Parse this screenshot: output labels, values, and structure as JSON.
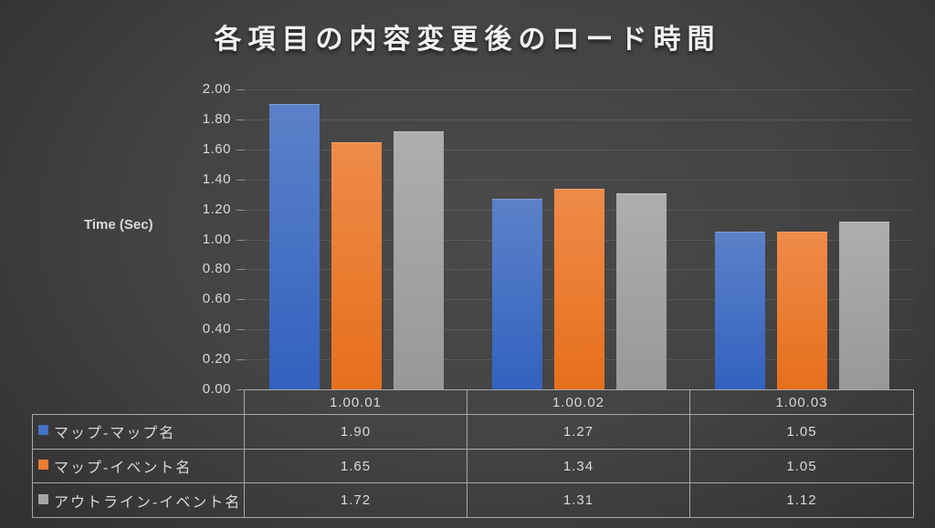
{
  "title": "各項目の内容変更後のロード時間",
  "y_axis": {
    "label": "Time (Sec)",
    "tick_labels": [
      "2.00",
      "1.80",
      "1.60",
      "1.40",
      "1.20",
      "1.00",
      "0.80",
      "0.60",
      "0.40",
      "0.20",
      "0.00"
    ],
    "min": 0,
    "max": 2
  },
  "chart_data": {
    "type": "bar",
    "title": "各項目の内容変更後のロード時間",
    "categories": [
      "1.00.01",
      "1.00.02",
      "1.00.03"
    ],
    "series": [
      {
        "name": "マップ-マップ名",
        "values": [
          1.9,
          1.27,
          1.05
        ],
        "swatch_color": "#4472c4",
        "fill_top": "#5c81c9",
        "fill_bottom": "#3262bf"
      },
      {
        "name": "マップ-イベント名",
        "values": [
          1.65,
          1.34,
          1.05
        ],
        "swatch_color": "#ed7d31",
        "fill_top": "#ef8b49",
        "fill_bottom": "#e76f1c"
      },
      {
        "name": "アウトライン-イベント名",
        "values": [
          1.72,
          1.31,
          1.12
        ],
        "swatch_color": "#a5a5a5",
        "fill_top": "#aeaeae",
        "fill_bottom": "#989898"
      }
    ],
    "ylabel": "Time (Sec)",
    "ylim": [
      0,
      2.0
    ],
    "ytick_step": 0.2,
    "grid": true,
    "legend_position": "table-left"
  },
  "table": {
    "column_headers": [
      "1.00.01",
      "1.00.02",
      "1.00.03"
    ],
    "rows": [
      {
        "legend": "マップ-マップ名",
        "values": [
          "1.90",
          "1.27",
          "1.05"
        ]
      },
      {
        "legend": "マップ-イベント名",
        "values": [
          "1.65",
          "1.34",
          "1.05"
        ]
      },
      {
        "legend": "アウトライン-イベント名",
        "values": [
          "1.72",
          "1.31",
          "1.12"
        ]
      }
    ]
  },
  "colors": {
    "background_center": "#4a4a4a",
    "background_edge": "#262626",
    "gridline": "rgba(255,255,255,0.10)",
    "table_border": "#a8a8a8",
    "text": "#d9d9d9",
    "title_text": "#f2f2f2"
  }
}
